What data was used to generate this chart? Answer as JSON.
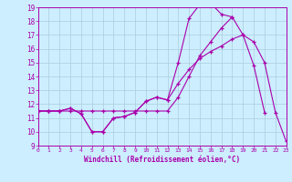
{
  "xlabel": "Windchill (Refroidissement éolien,°C)",
  "bg_color": "#cceeff",
  "grid_color": "#aaccdd",
  "line_color": "#aa00aa",
  "xmin": 0,
  "xmax": 23,
  "ymin": 9,
  "ymax": 19,
  "yticks": [
    9,
    10,
    11,
    12,
    13,
    14,
    15,
    16,
    17,
    18,
    19
  ],
  "xticks": [
    0,
    1,
    2,
    3,
    4,
    5,
    6,
    7,
    8,
    9,
    10,
    11,
    12,
    13,
    14,
    15,
    16,
    17,
    18,
    19,
    20,
    21,
    22,
    23
  ],
  "line1_x": [
    0,
    1,
    2,
    3,
    4,
    5,
    6,
    7,
    8,
    9,
    10,
    11,
    12,
    13,
    14,
    15,
    16,
    17,
    18,
    19,
    20,
    21
  ],
  "line1_y": [
    11.5,
    11.5,
    11.5,
    11.7,
    11.3,
    10.0,
    10.0,
    11.0,
    11.1,
    11.4,
    12.2,
    12.5,
    12.3,
    15.0,
    18.2,
    19.2,
    19.3,
    18.5,
    18.3,
    17.0,
    14.8,
    11.4
  ],
  "line2_x": [
    0,
    1,
    2,
    3,
    4,
    5,
    6,
    7,
    8,
    9,
    10,
    11,
    12,
    13,
    14,
    15,
    16,
    17,
    18
  ],
  "line2_y": [
    11.5,
    11.5,
    11.5,
    11.5,
    11.5,
    11.5,
    11.5,
    11.5,
    11.5,
    11.5,
    11.5,
    11.5,
    11.5,
    12.5,
    14.0,
    15.5,
    16.5,
    17.5,
    18.3
  ],
  "line3_x": [
    0,
    1,
    2,
    3,
    4,
    5,
    6,
    7,
    8,
    9,
    10,
    11,
    12,
    13,
    14,
    15,
    16,
    17,
    18,
    19,
    20,
    21,
    22,
    23
  ],
  "line3_y": [
    11.5,
    11.5,
    11.5,
    11.7,
    11.3,
    10.0,
    10.0,
    11.0,
    11.1,
    11.4,
    12.2,
    12.5,
    12.3,
    13.5,
    14.5,
    15.3,
    15.8,
    16.2,
    16.7,
    17.0,
    16.5,
    15.0,
    11.4,
    9.3
  ]
}
